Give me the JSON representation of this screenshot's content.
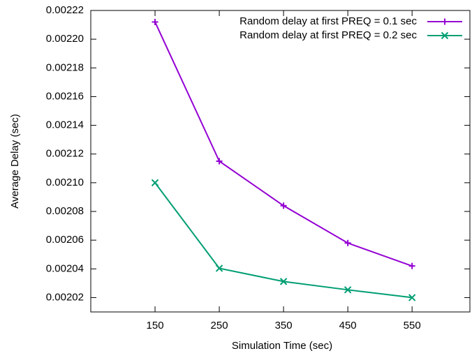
{
  "chart_data": {
    "type": "line",
    "xlabel": "Simulation Time (sec)",
    "ylabel": "Average Delay (sec)",
    "x": [
      150,
      250,
      350,
      450,
      550
    ],
    "series": [
      {
        "name": "Random delay at first PREQ = 0.1 sec",
        "color": "#9400d3",
        "marker": "plus",
        "values": [
          0.002212,
          0.002115,
          0.002084,
          0.002058,
          0.002042
        ]
      },
      {
        "name": "Random delay at first PREQ = 0.2 sec",
        "color": "#009e73",
        "marker": "cross",
        "values": [
          0.0021,
          0.0020404,
          0.0020312,
          0.0020254,
          0.00202
        ]
      }
    ],
    "xlim": [
      50,
      640
    ],
    "xticks": [
      150,
      250,
      350,
      450,
      550
    ],
    "ylim": [
      0.00201,
      0.00222
    ],
    "yticks": [
      0.00202,
      0.00204,
      0.00206,
      0.00208,
      {
        "value": 0.0021,
        "label": "0.00210"
      },
      0.00212,
      0.00214,
      0.00216,
      0.00218,
      {
        "value": 0.0022,
        "label": "0.00220"
      },
      0.00222
    ],
    "legend": "top-right",
    "grid": false
  }
}
